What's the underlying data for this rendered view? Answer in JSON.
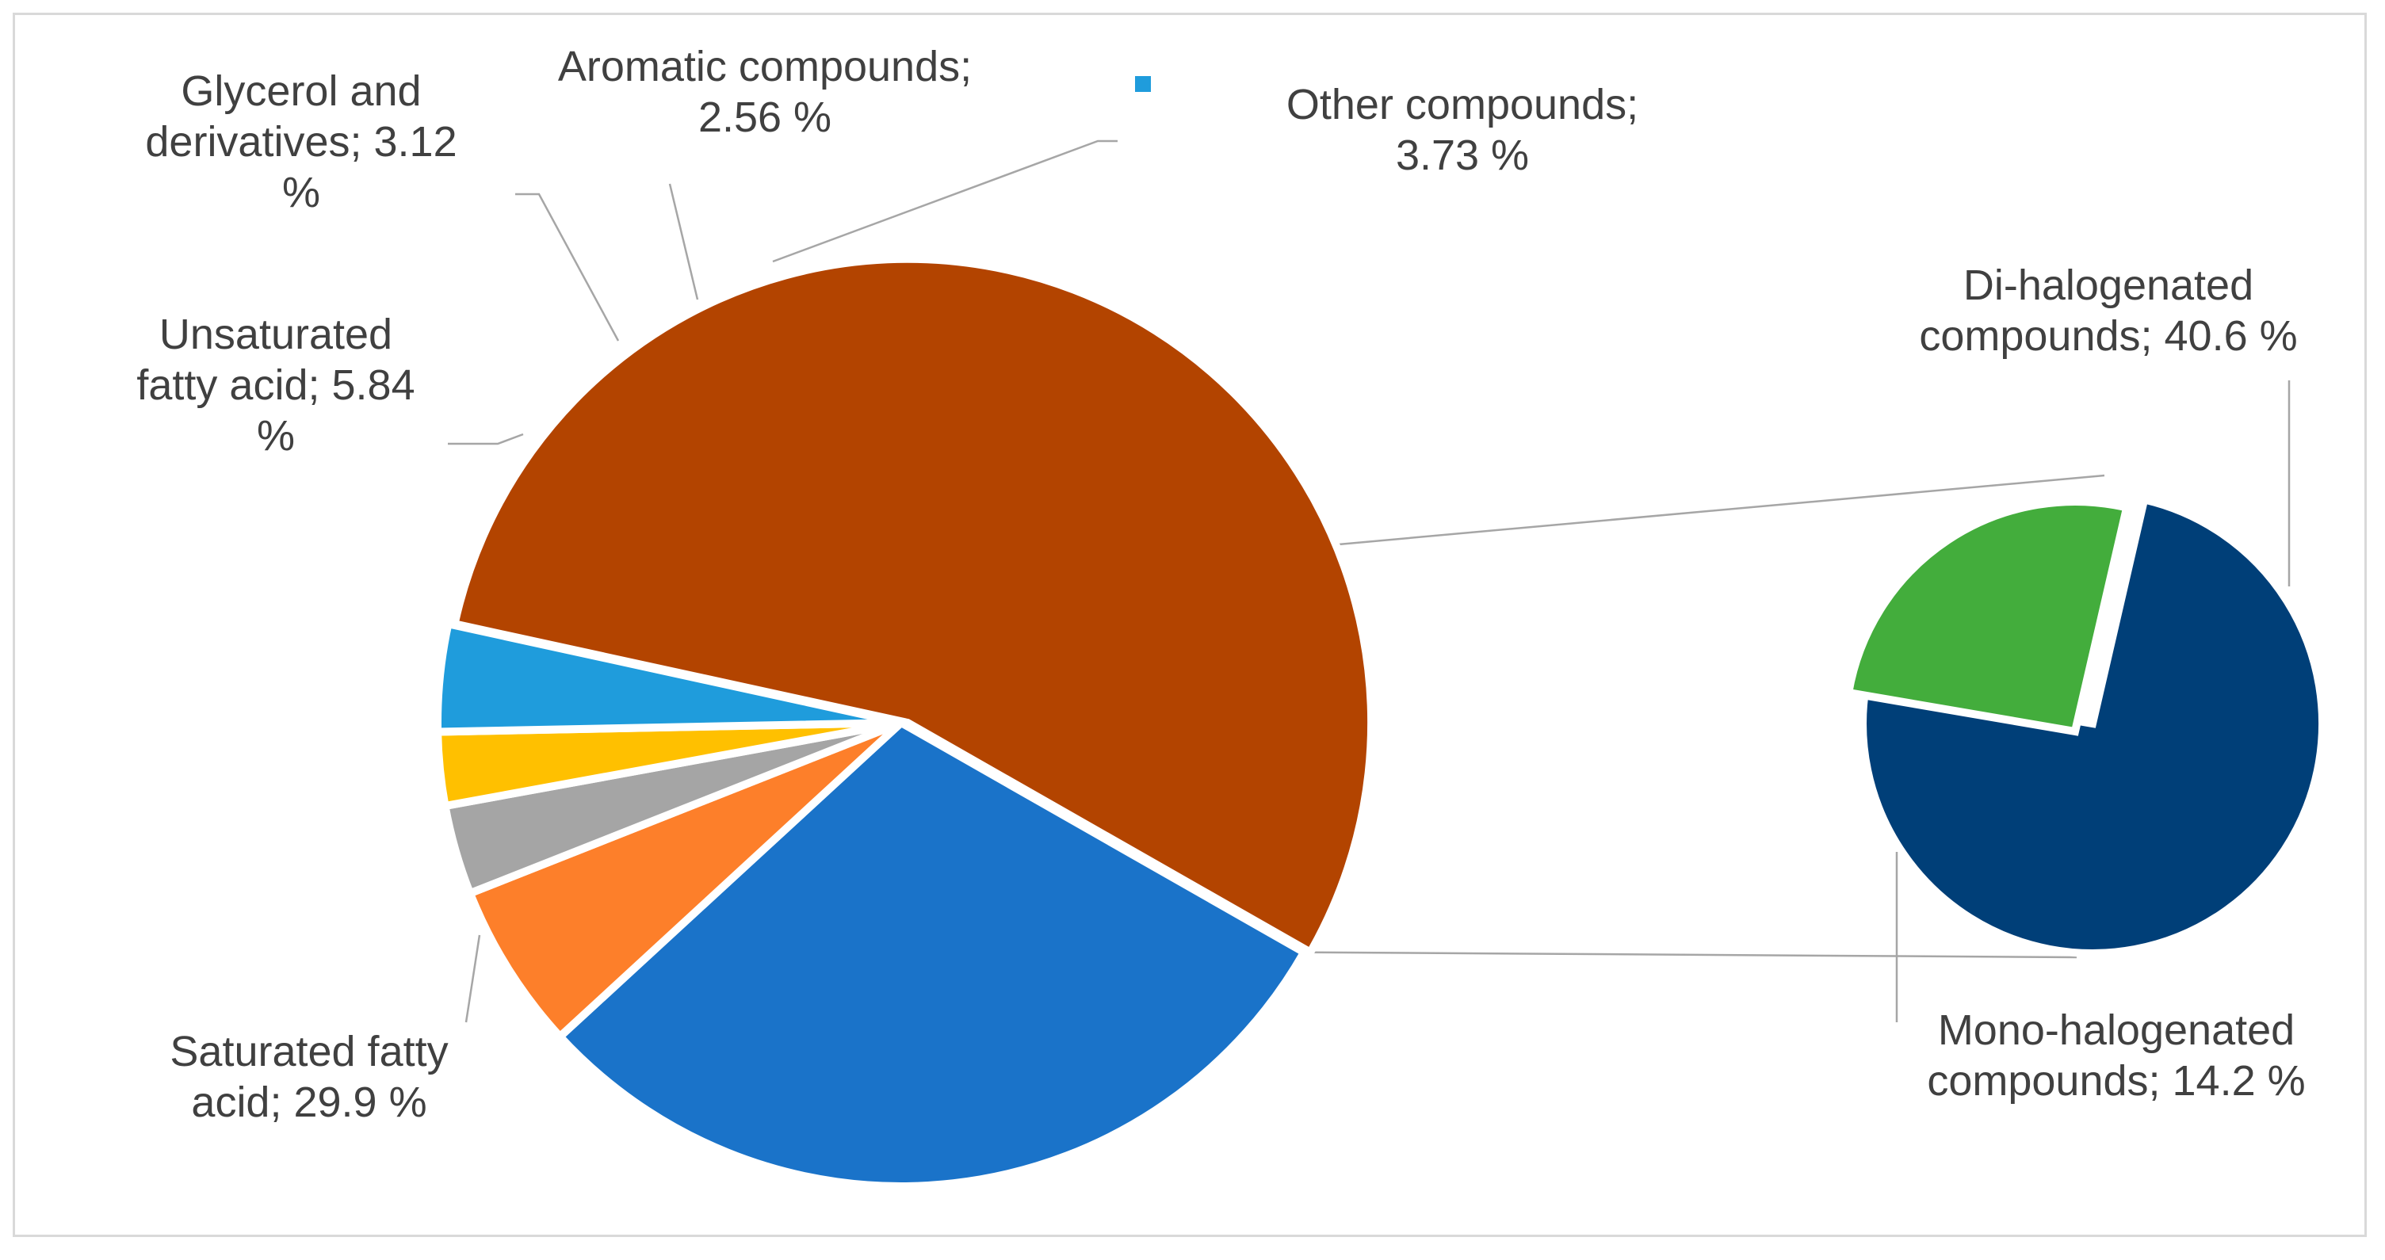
{
  "chart_data": {
    "type": "pie",
    "variant": "pie-of-pie",
    "title": "",
    "main_slices": [
      {
        "name": "Saturated fatty acid",
        "value": 29.9,
        "color": "#1a73c9",
        "label_lines": [
          "Saturated fatty",
          "acid; 29.9 %"
        ]
      },
      {
        "name": "Unsaturated fatty acid",
        "value": 5.84,
        "color": "#fd7f2a",
        "label_lines": [
          "Unsaturated",
          "fatty acid; 5.84",
          "%"
        ]
      },
      {
        "name": "Glycerol and derivatives",
        "value": 3.12,
        "color": "#a5a5a5",
        "label_lines": [
          "Glycerol and",
          "derivatives; 3.12",
          "%"
        ]
      },
      {
        "name": "Aromatic compounds",
        "value": 2.56,
        "color": "#ffc000",
        "label_lines": [
          "Aromatic compounds;",
          "2.56 %"
        ]
      },
      {
        "name": "Other compounds",
        "value": 3.73,
        "color": "#1f9cdc",
        "label_lines": [
          "Other compounds;",
          "3.73 %"
        ]
      }
    ],
    "secondary_slices": [
      {
        "name": "Di-halogenated compounds",
        "value": 40.6,
        "color": "#003f78",
        "label_lines": [
          "Di-halogenated",
          "compounds; 40.6 %"
        ]
      },
      {
        "name": "Mono-halogenated compounds",
        "value": 14.2,
        "color": "#43ad3c",
        "label_lines": [
          "Mono-halogenated",
          "compounds; 14.2 %"
        ]
      }
    ],
    "other_slice_color": "#b34400",
    "legend_marker_color": "#1f9cdc",
    "connector_color": "#a6a6a6",
    "label_color": "#404040"
  }
}
